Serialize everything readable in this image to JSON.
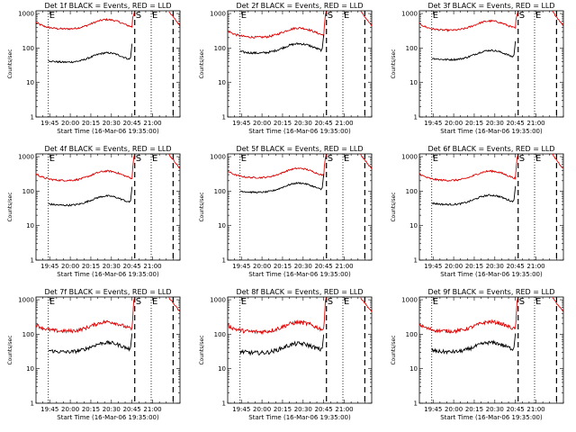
{
  "chart_data": {
    "type": "line",
    "ylabel": "Counts/sec",
    "xlabel": "Start Time (16-Mar-06 19:35:00)",
    "y_scale": "log",
    "ylim": [
      1,
      1200
    ],
    "y_ticks": [
      {
        "v": 1,
        "label": "1"
      },
      {
        "v": 10,
        "label": "10"
      },
      {
        "v": 100,
        "label": "100"
      },
      {
        "v": 1000,
        "label": "1000"
      }
    ],
    "xlim_minutes": [
      0,
      105
    ],
    "x_ticks": [
      {
        "t": 10,
        "label": "19:45"
      },
      {
        "t": 25,
        "label": "20:00"
      },
      {
        "t": 40,
        "label": "20:15"
      },
      {
        "t": 55,
        "label": "20:30"
      },
      {
        "t": 70,
        "label": "20:45"
      },
      {
        "t": 85,
        "label": "21:00"
      }
    ],
    "markers": [
      {
        "t": 9,
        "style": "dotted",
        "label": "E"
      },
      {
        "t": 72,
        "style": "dashed",
        "label": "S"
      },
      {
        "t": 84,
        "style": "dotted",
        "label": "E"
      },
      {
        "t": 100,
        "style": "dashed",
        "label": ""
      }
    ],
    "series_colors": {
      "events": "#000000",
      "lld": "#dd0000"
    },
    "panels": [
      {
        "title": "Det 1f BLACK = Events, RED = LLD",
        "lld_base": 350,
        "ev_base": 38,
        "noise": 0.06
      },
      {
        "title": "Det 2f BLACK = Events, RED = LLD",
        "lld_base": 200,
        "ev_base": 70,
        "noise": 0.07
      },
      {
        "title": "Det 3f BLACK = Events, RED = LLD",
        "lld_base": 320,
        "ev_base": 45,
        "noise": 0.06
      },
      {
        "title": "Det 4f BLACK = Events, RED = LLD",
        "lld_base": 200,
        "ev_base": 38,
        "noise": 0.06
      },
      {
        "title": "Det 5f BLACK = Events, RED = LLD",
        "lld_base": 240,
        "ev_base": 90,
        "noise": 0.05
      },
      {
        "title": "Det 6f BLACK = Events, RED = LLD",
        "lld_base": 200,
        "ev_base": 40,
        "noise": 0.06
      },
      {
        "title": "Det 7f BLACK = Events, RED = LLD",
        "lld_base": 120,
        "ev_base": 30,
        "noise": 0.12
      },
      {
        "title": "Det 8f BLACK = Events, RED = LLD",
        "lld_base": 115,
        "ev_base": 28,
        "noise": 0.14
      },
      {
        "title": "Det 9f BLACK = Events, RED = LLD",
        "lld_base": 120,
        "ev_base": 30,
        "noise": 0.12
      }
    ]
  }
}
